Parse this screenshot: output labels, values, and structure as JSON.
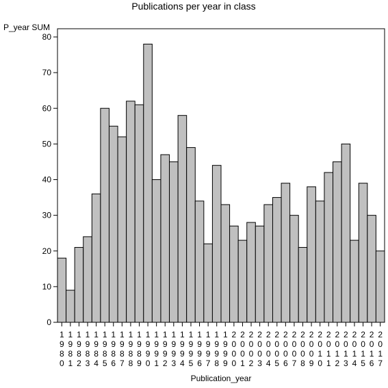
{
  "chart_data": {
    "type": "bar",
    "title": "Publications per year in class",
    "xlabel": "Publication_year",
    "ylabel": "P_year SUM",
    "ylim": [
      0,
      80
    ],
    "yticks": [
      0,
      10,
      20,
      30,
      40,
      50,
      60,
      70,
      80
    ],
    "grid": false,
    "legend": "none",
    "categories": [
      "1980",
      "1981",
      "1982",
      "1983",
      "1984",
      "1985",
      "1986",
      "1987",
      "1988",
      "1989",
      "1990",
      "1991",
      "1992",
      "1993",
      "1994",
      "1995",
      "1996",
      "1997",
      "1998",
      "1999",
      "2000",
      "2001",
      "2002",
      "2003",
      "2004",
      "2005",
      "2006",
      "2007",
      "2008",
      "2009",
      "2010",
      "2011",
      "2012",
      "2013",
      "2014",
      "2015",
      "2016",
      "2017"
    ],
    "values": [
      18,
      9,
      21,
      24,
      36,
      60,
      55,
      52,
      62,
      61,
      78,
      40,
      47,
      45,
      58,
      49,
      34,
      22,
      44,
      33,
      27,
      23,
      28,
      27,
      33,
      35,
      39,
      30,
      21,
      38,
      34,
      42,
      45,
      50,
      23,
      39,
      30,
      20
    ],
    "colors": {
      "bar_fill": "#c0c0c0",
      "bar_stroke": "#000000"
    }
  }
}
